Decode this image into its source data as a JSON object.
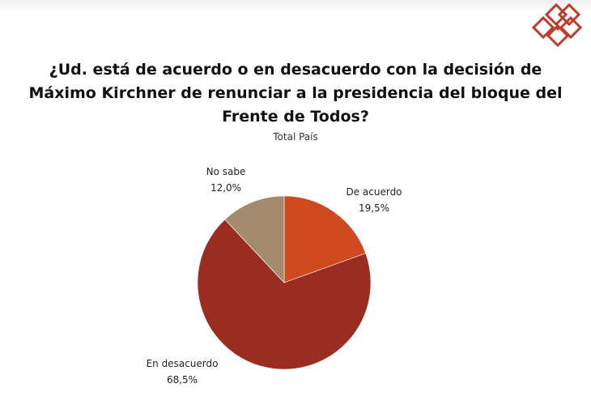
{
  "logo": {
    "icon": "diamond-logo-icon",
    "color": "#c0392b"
  },
  "chart_data": {
    "type": "pie",
    "title": "¿Ud. está de acuerdo o en desacuerdo con la decisión de Máximo Kirchner de renunciar a la presidencia del bloque del Frente de Todos?",
    "subtitle": "Total País",
    "slices": [
      {
        "label": "De acuerdo",
        "value": 19.5,
        "value_label": "19,5%",
        "color": "#d04a1f"
      },
      {
        "label": "En desacuerdo",
        "value": 68.5,
        "value_label": "68,5%",
        "color": "#9b2d20"
      },
      {
        "label": "No sabe",
        "value": 12.0,
        "value_label": "12,0%",
        "color": "#a38c6e"
      }
    ]
  }
}
